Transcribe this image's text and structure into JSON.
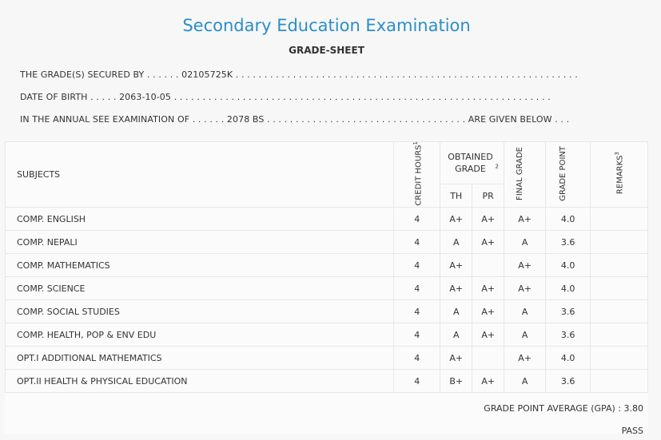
{
  "header": {
    "title": "Secondary Education Examination",
    "subtitle": "GRADE-SHEET"
  },
  "info": {
    "secured_by": "THE GRADE(S) SECURED BY . . . . . . 02105725K . . . . . . . . . . . . . . . . . . . . . . . . . . . . . . . . . . . . . . . . . . . . . . . . . . . . . . . . . . . .",
    "dob": "DATE OF BIRTH . . . . . 2063-10-05 . . . . . . . . . . . . . . . . . . . . . . . . . . . . . . . . . . . . . . . . . . . . . . . . . . . . . . . . . . . . . . . . . .",
    "exam": "IN THE ANNUAL SEE EXAMINATION OF . . . . . . 2078 BS . . . . . . . . . . . . . . . . . . . . . . . . . . . . . . . . . . . ARE GIVEN BELOW . . ."
  },
  "table": {
    "headers": {
      "subjects": "SUBJECTS",
      "credit_hours": "CREDIT HOURS",
      "credit_sup": "1",
      "obtained_grade": "OBTAINED GRADE",
      "obtained_sup": "2",
      "th": "TH",
      "pr": "PR",
      "final_grade": "FINAL GRADE",
      "grade_point": "GRADE POINT",
      "remarks": "REMARKS",
      "remarks_sup": "3"
    },
    "rows": [
      {
        "subject": "COMP. ENGLISH",
        "credit": "4",
        "th": "A+",
        "pr": "A+",
        "final": "A+",
        "gp": "4.0",
        "remarks": ""
      },
      {
        "subject": "COMP. NEPALI",
        "credit": "4",
        "th": "A",
        "pr": "A+",
        "final": "A",
        "gp": "3.6",
        "remarks": ""
      },
      {
        "subject": "COMP. MATHEMATICS",
        "credit": "4",
        "th": "A+",
        "pr": "",
        "final": "A+",
        "gp": "4.0",
        "remarks": ""
      },
      {
        "subject": "COMP. SCIENCE",
        "credit": "4",
        "th": "A+",
        "pr": "A+",
        "final": "A+",
        "gp": "4.0",
        "remarks": ""
      },
      {
        "subject": "COMP. SOCIAL STUDIES",
        "credit": "4",
        "th": "A",
        "pr": "A+",
        "final": "A",
        "gp": "3.6",
        "remarks": ""
      },
      {
        "subject": "COMP. HEALTH, POP & ENV EDU",
        "credit": "4",
        "th": "A",
        "pr": "A+",
        "final": "A",
        "gp": "3.6",
        "remarks": ""
      },
      {
        "subject": "OPT.I ADDITIONAL MATHEMATICS",
        "credit": "4",
        "th": "A+",
        "pr": "",
        "final": "A+",
        "gp": "4.0",
        "remarks": ""
      },
      {
        "subject": "OPT.II HEALTH & PHYSICAL EDUCATION",
        "credit": "4",
        "th": "B+",
        "pr": "A+",
        "final": "A",
        "gp": "3.6",
        "remarks": ""
      }
    ]
  },
  "summary": {
    "gpa": "GRADE POINT AVERAGE (GPA) : 3.80",
    "result": "PASS"
  }
}
